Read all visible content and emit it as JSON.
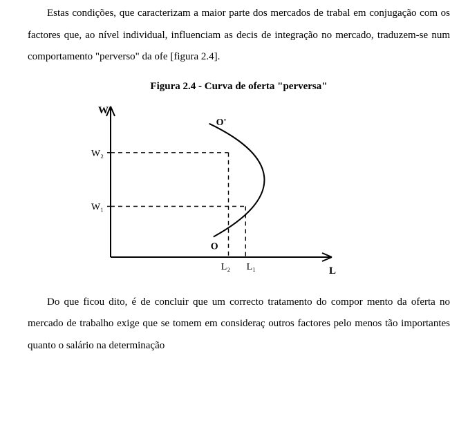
{
  "paragraph_top": "Estas condições, que caracterizam a maior parte dos mercados de trabal em conjugação com os factores que, ao nível individual, influenciam as decis de integração no mercado, traduzem-se num comportamento \"perverso\" da ofe [figura 2.4].",
  "figure": {
    "title_prefix": "Figura 2.4 - ",
    "title_main": "Curva de oferta \"perversa\"",
    "type": "line",
    "axes": {
      "y_label": "W",
      "x_label": "L",
      "y_ticks": [
        {
          "label": "W₂",
          "value": 0.72
        },
        {
          "label": "W₁",
          "value": 0.35
        }
      ],
      "x_ticks": [
        {
          "label": "L₂",
          "value": 0.55
        },
        {
          "label": "L₁",
          "value": 0.63
        }
      ],
      "line_color": "#000000",
      "dash_color": "#000000",
      "background": "#ffffff",
      "axis_width": 2,
      "curve_width": 2,
      "dash_pattern": "6,5"
    },
    "curve_labels": {
      "top": "O'",
      "bottom": "O"
    },
    "curve": {
      "description": "backward-bending labor supply",
      "start": {
        "x": 0.48,
        "y": 0.14
      },
      "control1": {
        "x": 0.8,
        "y": 0.4
      },
      "control2": {
        "x": 0.8,
        "y": 0.68
      },
      "end": {
        "x": 0.46,
        "y": 0.92
      }
    }
  },
  "paragraph_bottom": "Do que ficou dito, é de concluir que um correcto tratamento do compor mento da oferta no mercado de trabalho exige que se tomem em consideraç outros factores pelo menos tão importantes quanto o salário na determinação"
}
